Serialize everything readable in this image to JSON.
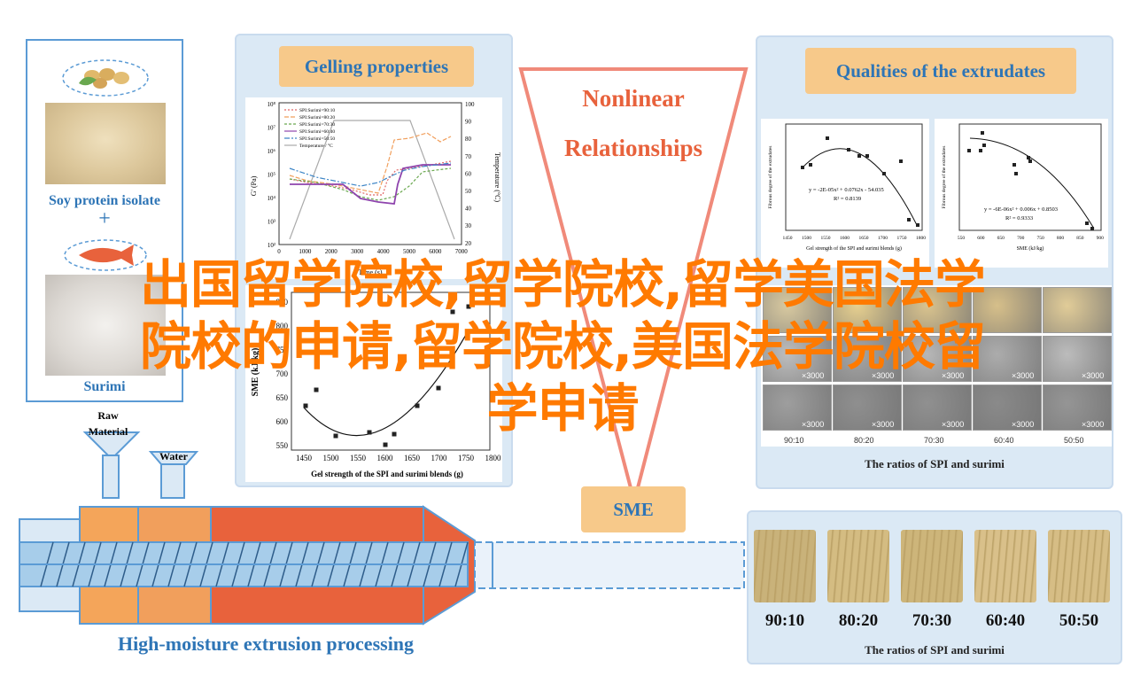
{
  "left_panel": {
    "soy_label": "Soy protein isolate",
    "plus": "+",
    "surimi_label": "Surimi"
  },
  "gelling": {
    "title": "Gelling properties",
    "ylabel_left": "G' (Pa)",
    "ylabel_right": "Temperature (°C)",
    "xlabel": "Time (s)",
    "legend": [
      "SPI:Surimi=90:10",
      "SPI:Surimi=80:20",
      "SPI:Surimi=70:30",
      "SPI:Surimi=60:40",
      "SPI:Surimi=50:50",
      "Temperature / °C"
    ],
    "xticks": [
      "0",
      "1000",
      "2000",
      "3000",
      "4000",
      "5000",
      "6000",
      "7000"
    ],
    "yticks_left": [
      "10⁸",
      "10⁷",
      "10⁶",
      "10⁵",
      "10⁴",
      "10³",
      "10²"
    ],
    "yticks_right": [
      "100",
      "90",
      "80",
      "70",
      "60",
      "50",
      "40",
      "30",
      "20"
    ]
  },
  "sme_chart": {
    "ylabel": "SME (kJ/kg)",
    "xlabel": "Gel strength of the SPI and surimi blends (g)",
    "xticks": [
      "1450",
      "1500",
      "1550",
      "1600",
      "1650",
      "1700",
      "1750",
      "1800"
    ],
    "yticks": [
      "850",
      "800",
      "750",
      "700",
      "650",
      "600",
      "550"
    ]
  },
  "center": {
    "triangle_line1": "Nonlinear",
    "triangle_line2": "Relationships",
    "sme_label": "SME"
  },
  "qualities": {
    "title": "Qualities of the extrudates",
    "chart1_eq": "y = -2E-05x² + 0.0762x - 54.035",
    "chart1_r2": "R² = 0.8139",
    "chart1_xlabel": "Gel strength of the SPI and surimi blends (g)",
    "chart1_ylabel": "Fibrous degree of the extrudates",
    "chart1_xticks": [
      "1450",
      "1500",
      "1550",
      "1600",
      "1650",
      "1700",
      "1750",
      "1800"
    ],
    "chart2_eq": "y = -6E-06x² + 0.006x + 0.8503",
    "chart2_r2": "R² = 0.9333",
    "chart2_xlabel": "SME (kJ/kg)",
    "chart2_ylabel": "Fibrous degree of the extrudates",
    "chart2_xticks": [
      "550",
      "600",
      "650",
      "700",
      "750",
      "800",
      "850",
      "900"
    ],
    "sem_mag": "×3000",
    "sem_ratios": [
      "90:10",
      "80:20",
      "70:30",
      "60:40",
      "50:50"
    ],
    "caption": "The ratios of SPI and surimi"
  },
  "extrusion": {
    "raw_line1": "Raw",
    "raw_line2": "Material",
    "water": "Water",
    "caption": "High-moisture extrusion processing"
  },
  "products": {
    "ratios": [
      "90:10",
      "80:20",
      "70:30",
      "60:40",
      "50:50"
    ],
    "caption": "The ratios of SPI and surimi"
  },
  "overlay": {
    "line1": "出国留学院校,留学院校,留学美国法学",
    "line2": "院校的申请,留学院校,美国法学院校留",
    "line3": "学申请"
  },
  "colors": {
    "accent_blue": "#2e75b6",
    "label_orange": "#f7c98a",
    "overlay_orange": "#ff7a00",
    "barrel_red": "#e8623c",
    "barrel_orange": "#f4a55a",
    "panel_bg": "#dbe9f5"
  }
}
